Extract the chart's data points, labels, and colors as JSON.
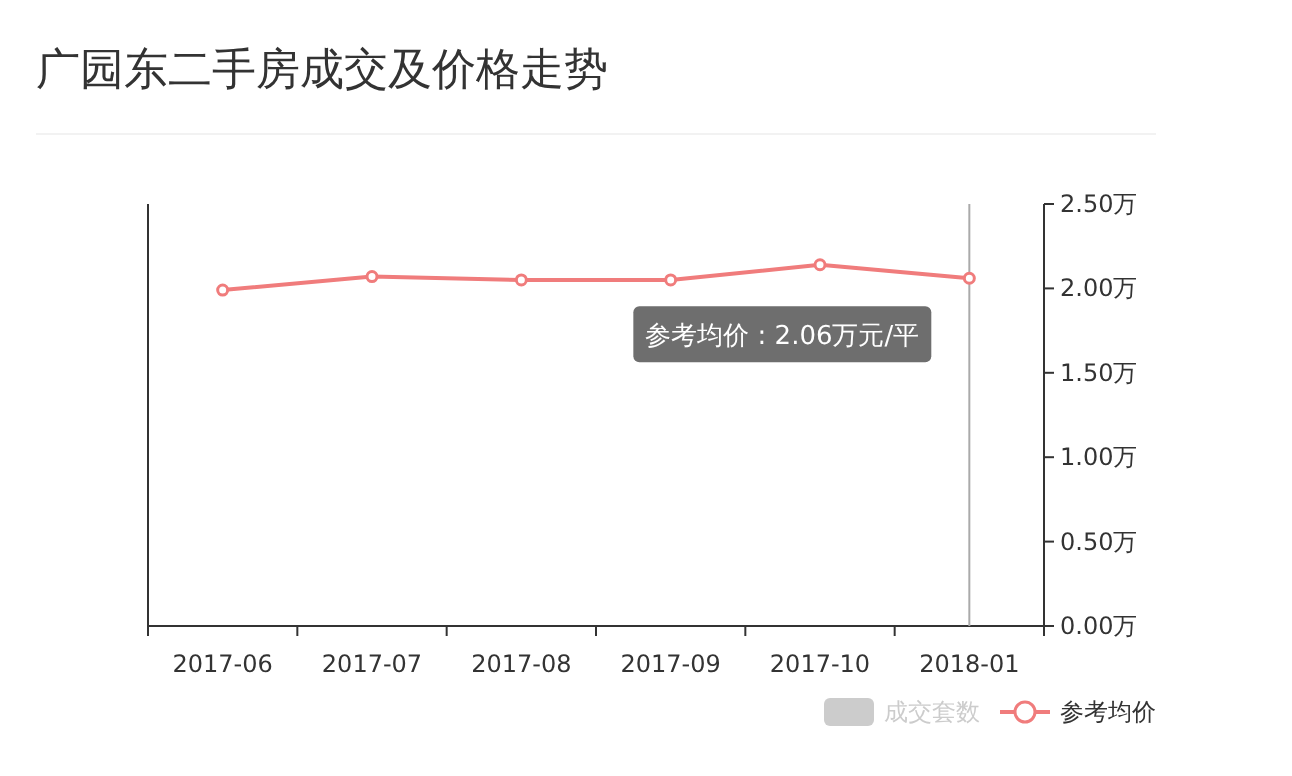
{
  "chart_data": {
    "type": "line",
    "title": "广园东二手房成交及价格走势",
    "categories": [
      "2017-06",
      "2017-07",
      "2017-08",
      "2017-09",
      "2017-10",
      "2018-01"
    ],
    "series": [
      {
        "name": "成交套数",
        "type": "bar",
        "color": "#cccccc",
        "values": [
          null,
          null,
          null,
          null,
          null,
          null
        ]
      },
      {
        "name": "参考均价",
        "color": "#f07c7c",
        "values": [
          1.99,
          2.07,
          2.05,
          2.05,
          2.14,
          2.06
        ]
      }
    ],
    "ylim": [
      0,
      2.5
    ],
    "yticks": [
      {
        "value": 0,
        "label": "0.00万"
      },
      {
        "value": 0.5,
        "label": "0.50万"
      },
      {
        "value": 1,
        "label": "1.00万"
      },
      {
        "value": 1.5,
        "label": "1.50万"
      },
      {
        "value": 2,
        "label": "2.00万"
      },
      {
        "value": 2.5,
        "label": "2.50万"
      }
    ],
    "marker": "circle",
    "grid": false,
    "legend": "bottom right",
    "ref_lines": [
      {
        "axis": "x",
        "value": "2018-01",
        "color": "#aaaaaa"
      }
    ],
    "annotations": [
      {
        "text": "参考均价 : 2.06万元/平",
        "x": "2018-01",
        "y": 2.06
      }
    ]
  }
}
